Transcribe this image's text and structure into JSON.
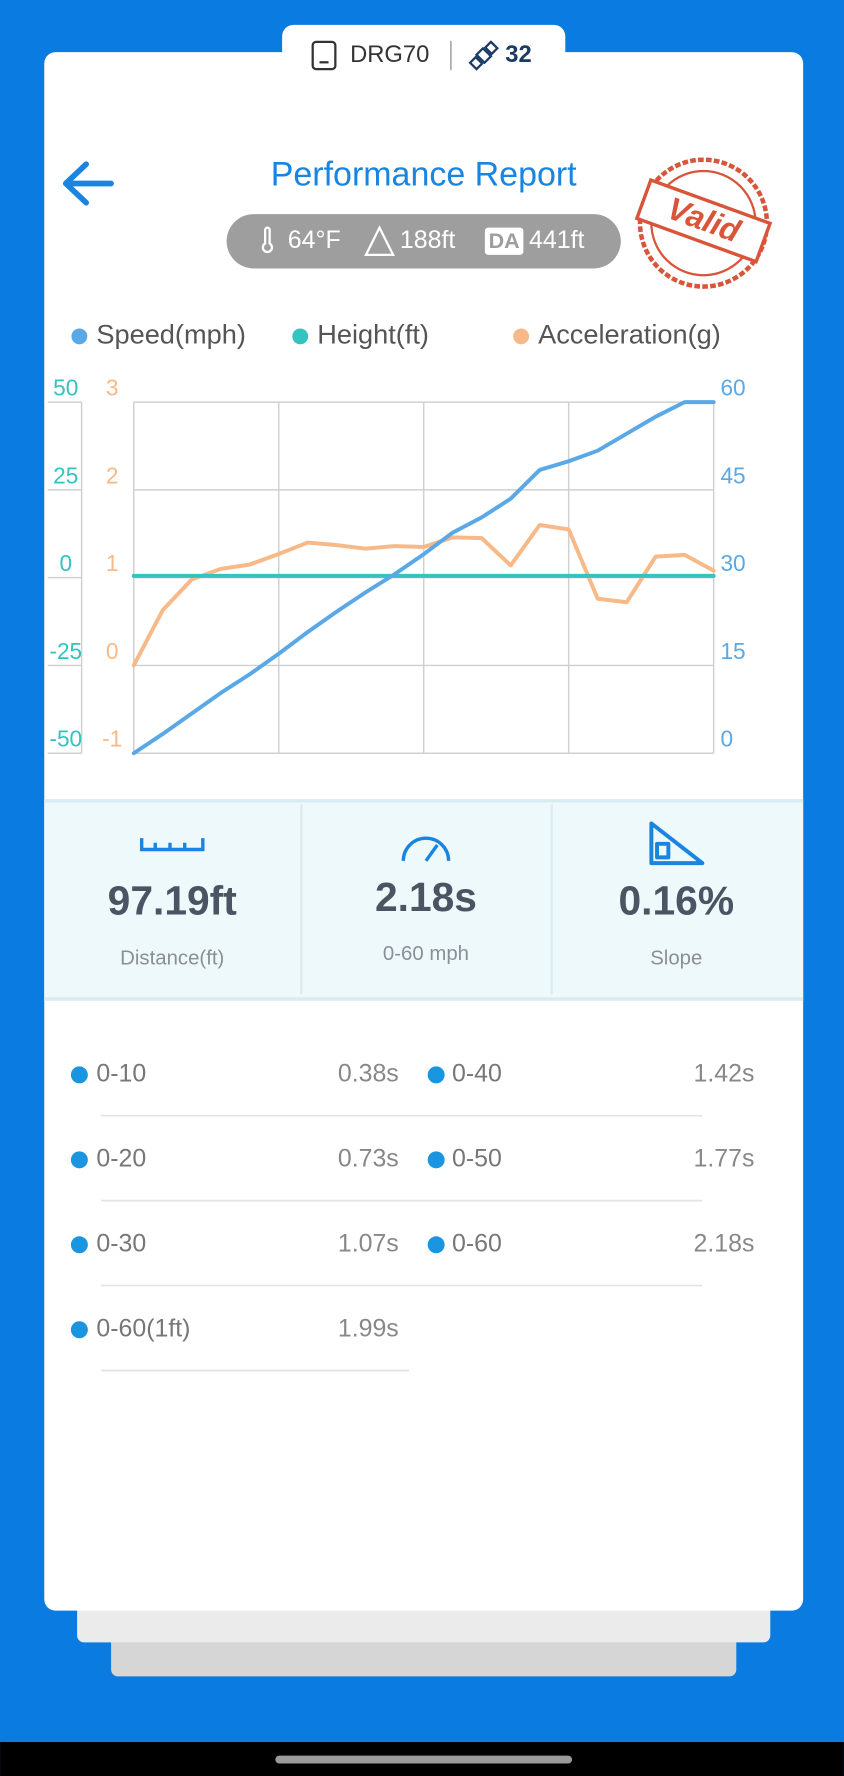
{
  "device": {
    "name": "DRG70",
    "satellites": 32
  },
  "header": {
    "title": "Performance Report",
    "stamp": "Valid"
  },
  "conditions": {
    "temperature": "64°F",
    "altitude": "188ft",
    "da_label": "DA",
    "density_altitude": "441ft"
  },
  "chart_data": {
    "type": "line",
    "categories": [
      null,
      null,
      null,
      null,
      null,
      null,
      null,
      null,
      null,
      null,
      null,
      null,
      null,
      null,
      null,
      null,
      null,
      null,
      null,
      null,
      null
    ],
    "series": [
      {
        "name": "Speed(mph)",
        "color": "#5aa9e6",
        "axis": "y2",
        "values": [
          0,
          3.3,
          6.8,
          10.3,
          13.5,
          17,
          20.7,
          24.2,
          27.5,
          30.6,
          34,
          37.7,
          40.3,
          43.5,
          48.4,
          49.9,
          51.7,
          54.6,
          57.5,
          60,
          60
        ]
      },
      {
        "name": "Height(ft)",
        "color": "#33c3c0",
        "axis": "y3",
        "values": [
          0.5,
          0.5,
          0.5,
          0.5,
          0.5,
          0.5,
          0.5,
          0.5,
          0.5,
          0.5,
          0.5,
          0.5,
          0.5,
          0.5,
          0.5,
          0.5,
          0.5,
          0.5,
          0.5,
          0.5,
          0.5
        ]
      },
      {
        "name": "Acceleration(g)",
        "color": "#f7b987",
        "axis": "y",
        "values": [
          0,
          0.63,
          0.98,
          1.1,
          1.15,
          1.27,
          1.4,
          1.37,
          1.33,
          1.36,
          1.35,
          1.46,
          1.45,
          1.14,
          1.6,
          1.55,
          0.76,
          0.72,
          1.24,
          1.26,
          1.08
        ]
      }
    ],
    "ylim": [
      -1,
      3
    ],
    "yticks": [
      -1,
      0,
      1,
      2,
      3
    ],
    "y2lim": [
      0,
      60
    ],
    "y2ticks": [
      0,
      15,
      30,
      45,
      60
    ],
    "y3lim": [
      -50,
      50
    ],
    "y3ticks": [
      -50,
      -25,
      0,
      25,
      50
    ],
    "grid": true
  },
  "stats": [
    {
      "value": "97.19ft",
      "label": "Distance(ft)"
    },
    {
      "value": "2.18s",
      "label": "0-60 mph"
    },
    {
      "value": "0.16%",
      "label": "Slope"
    }
  ],
  "splits": {
    "left": [
      {
        "label": "0-10",
        "time": "0.38s"
      },
      {
        "label": "0-20",
        "time": "0.73s"
      },
      {
        "label": "0-30",
        "time": "1.07s"
      },
      {
        "label": "0-60(1ft)",
        "time": "1.99s"
      }
    ],
    "right": [
      {
        "label": "0-40",
        "time": "1.42s"
      },
      {
        "label": "0-50",
        "time": "1.77s"
      },
      {
        "label": "0-60",
        "time": "2.18s"
      }
    ]
  }
}
